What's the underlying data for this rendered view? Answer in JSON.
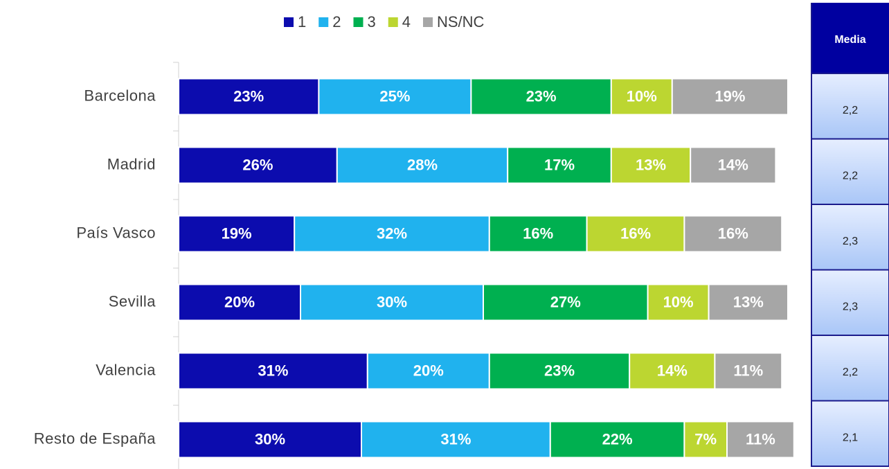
{
  "chart_data": {
    "type": "stacked-bar",
    "categories": [
      "Barcelona",
      "Madrid",
      "País Vasco",
      "Sevilla",
      "Valencia",
      "Resto de España"
    ],
    "xlim": [
      0,
      100
    ],
    "legend": "top",
    "series": [
      {
        "name": "1",
        "color": "#0c0cae",
        "values": [
          23,
          26,
          19,
          20,
          31,
          30
        ],
        "value_labels": [
          "23%",
          "26%",
          "19%",
          "20%",
          "31%",
          "30%"
        ]
      },
      {
        "name": "2",
        "color": "#20b2ee",
        "values": [
          25,
          28,
          32,
          30,
          20,
          31
        ],
        "value_labels": [
          "25%",
          "28%",
          "32%",
          "30%",
          "20%",
          "31%"
        ]
      },
      {
        "name": "3",
        "color": "#00b050",
        "values": [
          23,
          17,
          16,
          27,
          23,
          22
        ],
        "value_labels": [
          "23%",
          "17%",
          "16%",
          "27%",
          "23%",
          "22%"
        ]
      },
      {
        "name": "4",
        "color": "#bcd631",
        "values": [
          10,
          13,
          16,
          10,
          14,
          7
        ],
        "value_labels": [
          "10%",
          "13%",
          "16%",
          "10%",
          "14%",
          "7%"
        ]
      },
      {
        "name": "NS/NC",
        "color": "#a6a6a6",
        "values": [
          19,
          14,
          16,
          13,
          11,
          11
        ],
        "value_labels": [
          "19%",
          "14%",
          "16%",
          "13%",
          "11%",
          "11%"
        ]
      }
    ]
  },
  "media_table": {
    "header": "Media",
    "values": [
      "2,2",
      "2,2",
      "2,3",
      "2,3",
      "2,2",
      "2,1"
    ]
  }
}
